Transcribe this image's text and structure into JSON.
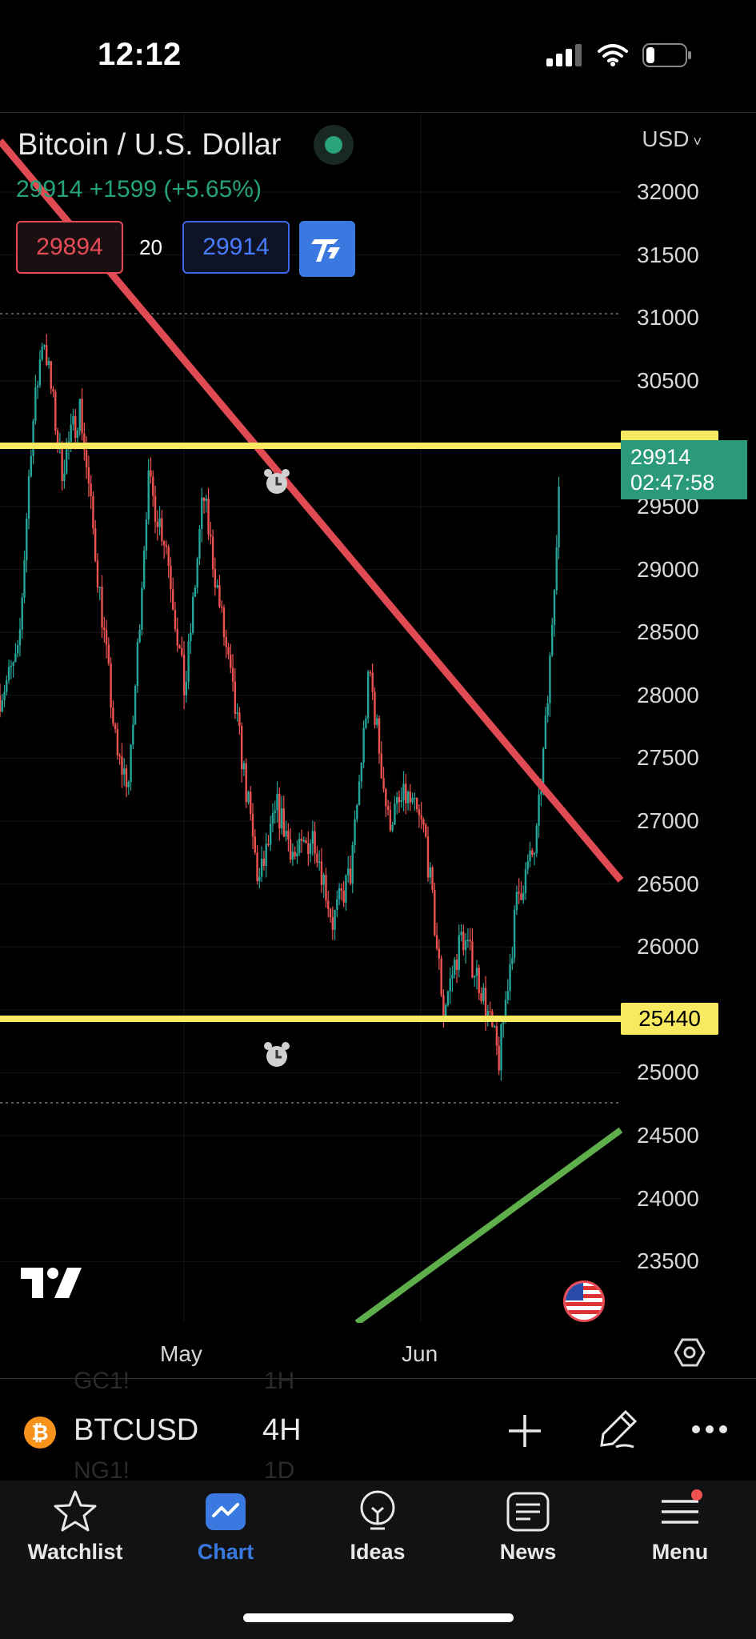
{
  "status": {
    "time": "12:12"
  },
  "header": {
    "title": "Bitcoin / U.S. Dollar",
    "last": "29914",
    "change": "+1599",
    "change_pct": "(+5.65%)",
    "sell_price": "29894",
    "spread": "20",
    "buy_price": "29914",
    "currency": "USD"
  },
  "axis": {
    "y_ticks": [
      "32000",
      "31500",
      "31000",
      "30500",
      "29500",
      "29000",
      "28500",
      "28000",
      "27500",
      "27000",
      "26500",
      "26000",
      "25000",
      "24500",
      "24000",
      "23500"
    ],
    "x_ticks": [
      "May",
      "Jun"
    ]
  },
  "price_labels": {
    "level_low": "25440",
    "last_price": "29914",
    "countdown": "02:47:58"
  },
  "symbol_bar": {
    "symbol": "BTCUSD",
    "interval": "4H",
    "ghost_top_symbol": "GC1!",
    "ghost_top_interval": "1H",
    "ghost_bottom_symbol": "NG1!",
    "ghost_bottom_interval": "1D"
  },
  "tabs": [
    {
      "label": "Watchlist",
      "icon": "star-icon"
    },
    {
      "label": "Chart",
      "icon": "chart-icon"
    },
    {
      "label": "Ideas",
      "icon": "lightbulb-icon"
    },
    {
      "label": "News",
      "icon": "news-icon"
    },
    {
      "label": "Menu",
      "icon": "menu-icon"
    }
  ],
  "colors": {
    "up": "#26a69a",
    "down": "#ef5350",
    "yellow_line": "#f7ea60",
    "red_trendline": "#e04a52",
    "green_trendline": "#5fae4c",
    "accent": "#3a7ae0"
  },
  "chart_data": {
    "type": "candlestick",
    "title": "Bitcoin / U.S. Dollar",
    "interval": "4H",
    "currency": "USD",
    "ylim": [
      23000,
      32500
    ],
    "x_ticks": [
      "May",
      "Jun"
    ],
    "horizontal_levels": [
      29900,
      25440
    ],
    "last_price": 29914,
    "waypoints": [
      {
        "t": 0,
        "p": 28000
      },
      {
        "t": 3,
        "p": 28300
      },
      {
        "t": 5,
        "p": 30000
      },
      {
        "t": 7,
        "p": 30900
      },
      {
        "t": 10,
        "p": 29800
      },
      {
        "t": 13,
        "p": 30300
      },
      {
        "t": 16,
        "p": 28900
      },
      {
        "t": 19,
        "p": 27500
      },
      {
        "t": 21,
        "p": 27300
      },
      {
        "t": 24,
        "p": 29700
      },
      {
        "t": 27,
        "p": 29200
      },
      {
        "t": 30,
        "p": 28000
      },
      {
        "t": 33,
        "p": 29600
      },
      {
        "t": 36,
        "p": 28600
      },
      {
        "t": 39,
        "p": 27600
      },
      {
        "t": 42,
        "p": 26500
      },
      {
        "t": 45,
        "p": 27100
      },
      {
        "t": 48,
        "p": 26700
      },
      {
        "t": 51,
        "p": 26900
      },
      {
        "t": 54,
        "p": 26200
      },
      {
        "t": 57,
        "p": 26600
      },
      {
        "t": 60,
        "p": 28200
      },
      {
        "t": 63,
        "p": 27000
      },
      {
        "t": 66,
        "p": 27200
      },
      {
        "t": 69,
        "p": 26900
      },
      {
        "t": 72,
        "p": 25500
      },
      {
        "t": 75,
        "p": 26100
      },
      {
        "t": 78,
        "p": 25700
      },
      {
        "t": 81,
        "p": 25100
      },
      {
        "t": 84,
        "p": 26400
      },
      {
        "t": 87,
        "p": 26800
      },
      {
        "t": 89,
        "p": 28000
      },
      {
        "t": 91,
        "p": 29914
      }
    ]
  }
}
